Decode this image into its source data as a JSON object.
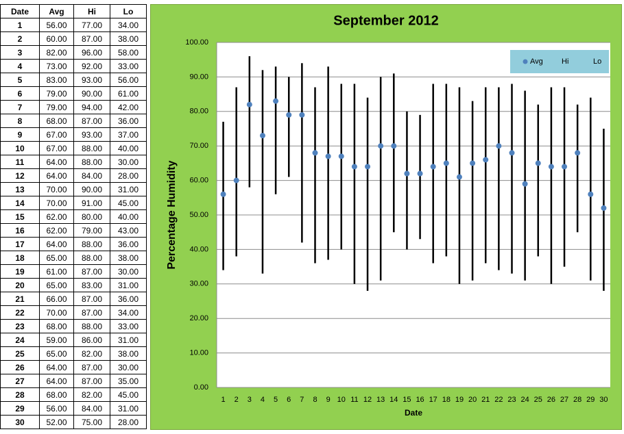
{
  "table": {
    "header": [
      "Date",
      "Avg",
      "Hi",
      "Lo"
    ],
    "rows": [
      [
        "1",
        "56.00",
        "77.00",
        "34.00"
      ],
      [
        "2",
        "60.00",
        "87.00",
        "38.00"
      ],
      [
        "3",
        "82.00",
        "96.00",
        "58.00"
      ],
      [
        "4",
        "73.00",
        "92.00",
        "33.00"
      ],
      [
        "5",
        "83.00",
        "93.00",
        "56.00"
      ],
      [
        "6",
        "79.00",
        "90.00",
        "61.00"
      ],
      [
        "7",
        "79.00",
        "94.00",
        "42.00"
      ],
      [
        "8",
        "68.00",
        "87.00",
        "36.00"
      ],
      [
        "9",
        "67.00",
        "93.00",
        "37.00"
      ],
      [
        "10",
        "67.00",
        "88.00",
        "40.00"
      ],
      [
        "11",
        "64.00",
        "88.00",
        "30.00"
      ],
      [
        "12",
        "64.00",
        "84.00",
        "28.00"
      ],
      [
        "13",
        "70.00",
        "90.00",
        "31.00"
      ],
      [
        "14",
        "70.00",
        "91.00",
        "45.00"
      ],
      [
        "15",
        "62.00",
        "80.00",
        "40.00"
      ],
      [
        "16",
        "62.00",
        "79.00",
        "43.00"
      ],
      [
        "17",
        "64.00",
        "88.00",
        "36.00"
      ],
      [
        "18",
        "65.00",
        "88.00",
        "38.00"
      ],
      [
        "19",
        "61.00",
        "87.00",
        "30.00"
      ],
      [
        "20",
        "65.00",
        "83.00",
        "31.00"
      ],
      [
        "21",
        "66.00",
        "87.00",
        "36.00"
      ],
      [
        "22",
        "70.00",
        "87.00",
        "34.00"
      ],
      [
        "23",
        "68.00",
        "88.00",
        "33.00"
      ],
      [
        "24",
        "59.00",
        "86.00",
        "31.00"
      ],
      [
        "25",
        "65.00",
        "82.00",
        "38.00"
      ],
      [
        "26",
        "64.00",
        "87.00",
        "30.00"
      ],
      [
        "27",
        "64.00",
        "87.00",
        "35.00"
      ],
      [
        "28",
        "68.00",
        "82.00",
        "45.00"
      ],
      [
        "29",
        "56.00",
        "84.00",
        "31.00"
      ],
      [
        "30",
        "52.00",
        "75.00",
        "28.00"
      ]
    ]
  },
  "chart_data": {
    "type": "hilo",
    "title": "September 2012",
    "x_label": "Date",
    "y_label": "Percentage Humidity",
    "categories": [
      "1",
      "2",
      "3",
      "4",
      "5",
      "6",
      "7",
      "8",
      "9",
      "10",
      "11",
      "12",
      "13",
      "14",
      "15",
      "16",
      "17",
      "18",
      "19",
      "20",
      "21",
      "22",
      "23",
      "24",
      "25",
      "26",
      "27",
      "28",
      "29",
      "30"
    ],
    "series": [
      {
        "name": "Avg",
        "color": "#4f81bd",
        "values": [
          56,
          60,
          82,
          73,
          83,
          79,
          79,
          68,
          67,
          67,
          64,
          64,
          70,
          70,
          62,
          62,
          64,
          65,
          61,
          65,
          66,
          70,
          68,
          59,
          65,
          64,
          64,
          68,
          56,
          52
        ]
      },
      {
        "name": "Hi",
        "color": "#000000",
        "values": [
          77,
          87,
          96,
          92,
          93,
          90,
          94,
          87,
          93,
          88,
          88,
          84,
          90,
          91,
          80,
          79,
          88,
          88,
          87,
          83,
          87,
          87,
          88,
          86,
          82,
          87,
          87,
          82,
          84,
          75
        ]
      },
      {
        "name": "Lo",
        "color": "#000000",
        "values": [
          34,
          38,
          58,
          33,
          56,
          61,
          42,
          36,
          37,
          40,
          30,
          28,
          31,
          45,
          40,
          43,
          36,
          38,
          30,
          31,
          36,
          34,
          33,
          31,
          38,
          30,
          35,
          45,
          31,
          28
        ]
      }
    ],
    "ylim": [
      0,
      100
    ],
    "yticks": [
      {
        "value": 0,
        "label": "0.00"
      },
      {
        "value": 10,
        "label": "10.00"
      },
      {
        "value": 20,
        "label": "20.00"
      },
      {
        "value": 30,
        "label": "30.00"
      },
      {
        "value": 40,
        "label": "40.00"
      },
      {
        "value": 50,
        "label": "50.00"
      },
      {
        "value": 60,
        "label": "60.00"
      },
      {
        "value": 70,
        "label": "70.00"
      },
      {
        "value": 80,
        "label": "80.00"
      },
      {
        "value": 90,
        "label": "90.00"
      },
      {
        "value": 100,
        "label": "100.00"
      }
    ],
    "grid": true,
    "legend": "top-right"
  }
}
